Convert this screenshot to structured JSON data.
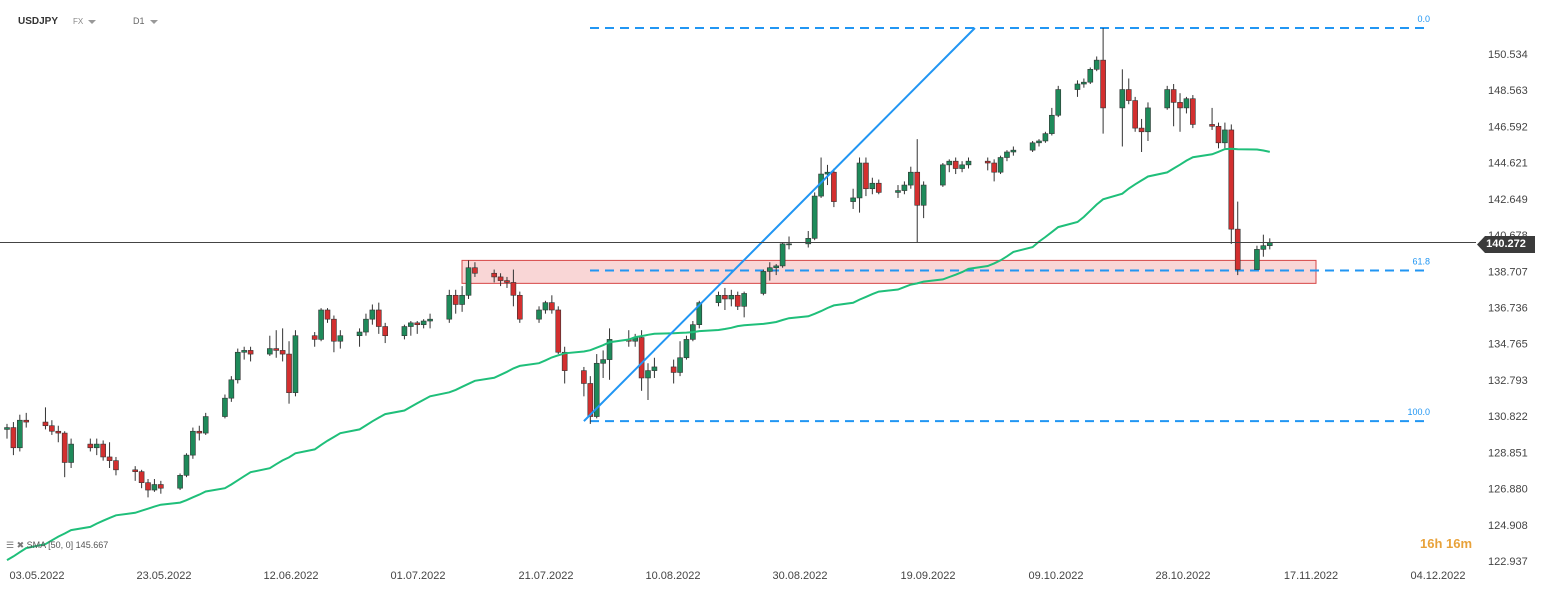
{
  "header": {
    "symbol": "USDJPY",
    "market": "FX",
    "timeframe": "D1"
  },
  "indicator_label": "SMA [50, 0] 145.667",
  "countdown": "16h 16m",
  "current_price_label": "140.272",
  "colors": {
    "up": "#1e8a5a",
    "down": "#d32f2f",
    "sma": "#1fbf7a",
    "fib": "#2196f3",
    "trend": "#2196f3",
    "zone_fill": "#f9d6d6",
    "zone_border": "#d64545",
    "price_line": "#444444"
  },
  "chart_data": {
    "type": "candlestick",
    "symbol": "USDJPY",
    "y_ticks": [
      "150.534",
      "148.563",
      "146.592",
      "144.621",
      "142.649",
      "140.678",
      "138.707",
      "136.736",
      "134.765",
      "132.793",
      "130.822",
      "128.851",
      "126.880",
      "124.908",
      "122.937"
    ],
    "x_ticks": [
      "03.05.2022",
      "23.05.2022",
      "12.06.2022",
      "01.07.2022",
      "21.07.2022",
      "10.08.2022",
      "30.08.2022",
      "19.09.2022",
      "09.10.2022",
      "28.10.2022",
      "17.11.2022",
      "04.12.2022"
    ],
    "ylim": [
      122.937,
      150.534
    ],
    "last_price": 140.272,
    "fibonacci": [
      {
        "label": "0.0",
        "value": 151.95
      },
      {
        "label": "61.8",
        "value": 138.75
      },
      {
        "label": "100.0",
        "value": 130.55
      }
    ],
    "support_zone": {
      "from": 138.05,
      "to": 139.3
    },
    "sma": {
      "name": "SMA",
      "period": 50,
      "shift": 0,
      "value": 145.667
    },
    "trend_line": {
      "from": {
        "x": "2022-08-01",
        "y": 130.55
      },
      "to": {
        "x": "2022-10-01",
        "y": 151.95
      }
    },
    "candles": [
      {
        "d": "2022-05-03",
        "o": 130.1,
        "h": 130.4,
        "l": 129.6,
        "c": 130.2
      },
      {
        "d": "2022-05-04",
        "o": 130.2,
        "h": 130.5,
        "l": 128.7,
        "c": 129.1
      },
      {
        "d": "2022-05-05",
        "o": 129.1,
        "h": 130.9,
        "l": 128.9,
        "c": 130.6
      },
      {
        "d": "2022-05-06",
        "o": 130.6,
        "h": 131.0,
        "l": 130.2,
        "c": 130.5
      },
      {
        "d": "2022-05-09",
        "o": 130.5,
        "h": 131.3,
        "l": 130.1,
        "c": 130.3
      },
      {
        "d": "2022-05-10",
        "o": 130.3,
        "h": 130.6,
        "l": 129.8,
        "c": 130.0
      },
      {
        "d": "2022-05-11",
        "o": 130.0,
        "h": 130.3,
        "l": 129.4,
        "c": 129.9
      },
      {
        "d": "2022-05-12",
        "o": 129.9,
        "h": 130.0,
        "l": 127.5,
        "c": 128.3
      },
      {
        "d": "2022-05-13",
        "o": 128.3,
        "h": 129.6,
        "l": 128.0,
        "c": 129.3
      },
      {
        "d": "2022-05-16",
        "o": 129.3,
        "h": 129.6,
        "l": 128.9,
        "c": 129.1
      },
      {
        "d": "2022-05-17",
        "o": 129.1,
        "h": 129.6,
        "l": 128.7,
        "c": 129.3
      },
      {
        "d": "2022-05-18",
        "o": 129.3,
        "h": 129.5,
        "l": 128.4,
        "c": 128.6
      },
      {
        "d": "2022-05-19",
        "o": 128.6,
        "h": 129.4,
        "l": 128.0,
        "c": 128.4
      },
      {
        "d": "2022-05-20",
        "o": 128.4,
        "h": 128.6,
        "l": 127.6,
        "c": 127.9
      },
      {
        "d": "2022-05-23",
        "o": 127.9,
        "h": 128.1,
        "l": 127.3,
        "c": 127.8
      },
      {
        "d": "2022-05-24",
        "o": 127.8,
        "h": 127.9,
        "l": 126.9,
        "c": 127.2
      },
      {
        "d": "2022-05-25",
        "o": 127.2,
        "h": 127.4,
        "l": 126.4,
        "c": 126.8
      },
      {
        "d": "2022-05-26",
        "o": 126.8,
        "h": 127.4,
        "l": 126.7,
        "c": 127.1
      },
      {
        "d": "2022-05-27",
        "o": 127.1,
        "h": 127.3,
        "l": 126.6,
        "c": 126.9
      },
      {
        "d": "2022-05-30",
        "o": 126.9,
        "h": 127.7,
        "l": 126.8,
        "c": 127.6
      },
      {
        "d": "2022-05-31",
        "o": 127.6,
        "h": 128.8,
        "l": 127.5,
        "c": 128.7
      },
      {
        "d": "2022-06-01",
        "o": 128.7,
        "h": 130.2,
        "l": 128.5,
        "c": 130.0
      },
      {
        "d": "2022-06-02",
        "o": 130.0,
        "h": 130.3,
        "l": 129.5,
        "c": 129.9
      },
      {
        "d": "2022-06-03",
        "o": 129.9,
        "h": 131.0,
        "l": 129.8,
        "c": 130.8
      },
      {
        "d": "2022-06-06",
        "o": 130.8,
        "h": 132.0,
        "l": 130.7,
        "c": 131.8
      },
      {
        "d": "2022-06-07",
        "o": 131.8,
        "h": 133.0,
        "l": 131.6,
        "c": 132.8
      },
      {
        "d": "2022-06-08",
        "o": 132.8,
        "h": 134.5,
        "l": 132.6,
        "c": 134.3
      },
      {
        "d": "2022-06-09",
        "o": 134.3,
        "h": 134.6,
        "l": 133.9,
        "c": 134.4
      },
      {
        "d": "2022-06-10",
        "o": 134.4,
        "h": 134.6,
        "l": 133.8,
        "c": 134.2
      },
      {
        "d": "2022-06-13",
        "o": 134.2,
        "h": 135.2,
        "l": 134.1,
        "c": 134.5
      },
      {
        "d": "2022-06-14",
        "o": 134.5,
        "h": 135.5,
        "l": 134.0,
        "c": 134.4
      },
      {
        "d": "2022-06-15",
        "o": 134.4,
        "h": 135.6,
        "l": 133.8,
        "c": 134.2
      },
      {
        "d": "2022-06-16",
        "o": 134.2,
        "h": 134.9,
        "l": 131.5,
        "c": 132.1
      },
      {
        "d": "2022-06-17",
        "o": 132.1,
        "h": 135.5,
        "l": 131.9,
        "c": 135.2
      },
      {
        "d": "2022-06-20",
        "o": 135.2,
        "h": 135.4,
        "l": 134.6,
        "c": 135.0
      },
      {
        "d": "2022-06-21",
        "o": 135.0,
        "h": 136.7,
        "l": 134.9,
        "c": 136.6
      },
      {
        "d": "2022-06-22",
        "o": 136.6,
        "h": 136.7,
        "l": 135.9,
        "c": 136.1
      },
      {
        "d": "2022-06-23",
        "o": 136.1,
        "h": 136.3,
        "l": 134.3,
        "c": 134.9
      },
      {
        "d": "2022-06-24",
        "o": 134.9,
        "h": 135.5,
        "l": 134.5,
        "c": 135.2
      },
      {
        "d": "2022-06-27",
        "o": 135.2,
        "h": 135.6,
        "l": 134.6,
        "c": 135.4
      },
      {
        "d": "2022-06-28",
        "o": 135.4,
        "h": 136.4,
        "l": 135.2,
        "c": 136.1
      },
      {
        "d": "2022-06-29",
        "o": 136.1,
        "h": 136.9,
        "l": 135.8,
        "c": 136.6
      },
      {
        "d": "2022-06-30",
        "o": 136.6,
        "h": 137.0,
        "l": 135.3,
        "c": 135.7
      },
      {
        "d": "2022-07-01",
        "o": 135.7,
        "h": 135.9,
        "l": 134.8,
        "c": 135.2
      },
      {
        "d": "2022-07-04",
        "o": 135.2,
        "h": 135.8,
        "l": 135.0,
        "c": 135.7
      },
      {
        "d": "2022-07-05",
        "o": 135.7,
        "h": 136.0,
        "l": 135.2,
        "c": 135.9
      },
      {
        "d": "2022-07-06",
        "o": 135.9,
        "h": 136.0,
        "l": 135.3,
        "c": 135.8
      },
      {
        "d": "2022-07-07",
        "o": 135.8,
        "h": 136.1,
        "l": 135.6,
        "c": 136.0
      },
      {
        "d": "2022-07-08",
        "o": 136.0,
        "h": 136.4,
        "l": 135.6,
        "c": 136.1
      },
      {
        "d": "2022-07-11",
        "o": 136.1,
        "h": 137.7,
        "l": 135.9,
        "c": 137.4
      },
      {
        "d": "2022-07-12",
        "o": 137.4,
        "h": 137.7,
        "l": 136.4,
        "c": 136.9
      },
      {
        "d": "2022-07-13",
        "o": 136.9,
        "h": 137.9,
        "l": 136.5,
        "c": 137.4
      },
      {
        "d": "2022-07-14",
        "o": 137.4,
        "h": 139.3,
        "l": 137.2,
        "c": 138.9
      },
      {
        "d": "2022-07-15",
        "o": 138.9,
        "h": 139.2,
        "l": 138.4,
        "c": 138.6
      },
      {
        "d": "2022-07-18",
        "o": 138.6,
        "h": 138.8,
        "l": 138.1,
        "c": 138.4
      },
      {
        "d": "2022-07-19",
        "o": 138.4,
        "h": 138.6,
        "l": 137.9,
        "c": 138.2
      },
      {
        "d": "2022-07-20",
        "o": 138.2,
        "h": 138.4,
        "l": 137.8,
        "c": 138.1
      },
      {
        "d": "2022-07-21",
        "o": 138.1,
        "h": 138.8,
        "l": 136.8,
        "c": 137.4
      },
      {
        "d": "2022-07-22",
        "o": 137.4,
        "h": 137.6,
        "l": 135.9,
        "c": 136.1
      },
      {
        "d": "2022-07-25",
        "o": 136.1,
        "h": 136.8,
        "l": 135.9,
        "c": 136.6
      },
      {
        "d": "2022-07-26",
        "o": 136.6,
        "h": 137.1,
        "l": 136.4,
        "c": 137.0
      },
      {
        "d": "2022-07-27",
        "o": 137.0,
        "h": 137.4,
        "l": 136.4,
        "c": 136.6
      },
      {
        "d": "2022-07-28",
        "o": 136.6,
        "h": 136.8,
        "l": 134.2,
        "c": 134.3
      },
      {
        "d": "2022-07-29",
        "o": 134.3,
        "h": 134.6,
        "l": 132.6,
        "c": 133.3
      },
      {
        "d": "2022-08-01",
        "o": 133.3,
        "h": 133.5,
        "l": 131.9,
        "c": 132.6
      },
      {
        "d": "2022-08-02",
        "o": 132.6,
        "h": 133.0,
        "l": 130.4,
        "c": 130.8
      },
      {
        "d": "2022-08-03",
        "o": 130.8,
        "h": 134.2,
        "l": 130.7,
        "c": 133.7
      },
      {
        "d": "2022-08-04",
        "o": 133.7,
        "h": 134.4,
        "l": 132.9,
        "c": 133.9
      },
      {
        "d": "2022-08-05",
        "o": 133.9,
        "h": 135.6,
        "l": 132.8,
        "c": 135.0
      },
      {
        "d": "2022-08-08",
        "o": 135.0,
        "h": 135.5,
        "l": 134.6,
        "c": 134.9
      },
      {
        "d": "2022-08-09",
        "o": 134.9,
        "h": 135.3,
        "l": 134.6,
        "c": 135.1
      },
      {
        "d": "2022-08-10",
        "o": 135.1,
        "h": 135.5,
        "l": 132.2,
        "c": 132.9
      },
      {
        "d": "2022-08-11",
        "o": 132.9,
        "h": 133.7,
        "l": 131.7,
        "c": 133.3
      },
      {
        "d": "2022-08-12",
        "o": 133.3,
        "h": 134.0,
        "l": 132.9,
        "c": 133.5
      },
      {
        "d": "2022-08-15",
        "o": 133.5,
        "h": 133.9,
        "l": 132.6,
        "c": 133.2
      },
      {
        "d": "2022-08-16",
        "o": 133.2,
        "h": 134.9,
        "l": 133.0,
        "c": 134.0
      },
      {
        "d": "2022-08-17",
        "o": 134.0,
        "h": 135.2,
        "l": 133.9,
        "c": 135.0
      },
      {
        "d": "2022-08-18",
        "o": 135.0,
        "h": 136.0,
        "l": 134.9,
        "c": 135.8
      },
      {
        "d": "2022-08-19",
        "o": 135.8,
        "h": 137.1,
        "l": 135.6,
        "c": 137.0
      },
      {
        "d": "2022-08-22",
        "o": 137.0,
        "h": 137.6,
        "l": 136.8,
        "c": 137.4
      },
      {
        "d": "2022-08-23",
        "o": 137.4,
        "h": 137.8,
        "l": 136.6,
        "c": 137.2
      },
      {
        "d": "2022-08-24",
        "o": 137.2,
        "h": 137.7,
        "l": 136.8,
        "c": 137.4
      },
      {
        "d": "2022-08-25",
        "o": 137.4,
        "h": 137.6,
        "l": 136.6,
        "c": 136.8
      },
      {
        "d": "2022-08-26",
        "o": 136.8,
        "h": 137.6,
        "l": 136.2,
        "c": 137.5
      },
      {
        "d": "2022-08-29",
        "o": 137.5,
        "h": 138.8,
        "l": 137.4,
        "c": 138.7
      },
      {
        "d": "2022-08-30",
        "o": 138.7,
        "h": 139.2,
        "l": 138.2,
        "c": 138.9
      },
      {
        "d": "2022-08-31",
        "o": 138.9,
        "h": 139.1,
        "l": 138.5,
        "c": 139.0
      },
      {
        "d": "2022-09-01",
        "o": 139.0,
        "h": 140.3,
        "l": 138.9,
        "c": 140.2
      },
      {
        "d": "2022-09-02",
        "o": 140.2,
        "h": 140.6,
        "l": 139.9,
        "c": 140.2
      },
      {
        "d": "2022-09-05",
        "o": 140.2,
        "h": 140.9,
        "l": 140.0,
        "c": 140.5
      },
      {
        "d": "2022-09-06",
        "o": 140.5,
        "h": 143.0,
        "l": 140.4,
        "c": 142.8
      },
      {
        "d": "2022-09-07",
        "o": 142.8,
        "h": 144.9,
        "l": 142.7,
        "c": 144.0
      },
      {
        "d": "2022-09-08",
        "o": 144.0,
        "h": 144.5,
        "l": 143.4,
        "c": 144.1
      },
      {
        "d": "2022-09-09",
        "o": 144.1,
        "h": 144.3,
        "l": 142.2,
        "c": 142.5
      },
      {
        "d": "2022-09-12",
        "o": 142.5,
        "h": 143.2,
        "l": 142.1,
        "c": 142.7
      },
      {
        "d": "2022-09-13",
        "o": 142.7,
        "h": 144.9,
        "l": 141.9,
        "c": 144.6
      },
      {
        "d": "2022-09-14",
        "o": 144.6,
        "h": 144.9,
        "l": 142.8,
        "c": 143.2
      },
      {
        "d": "2022-09-15",
        "o": 143.2,
        "h": 143.8,
        "l": 142.9,
        "c": 143.5
      },
      {
        "d": "2022-09-16",
        "o": 143.5,
        "h": 143.7,
        "l": 142.9,
        "c": 143.0
      },
      {
        "d": "2022-09-19",
        "o": 143.0,
        "h": 143.4,
        "l": 142.7,
        "c": 143.1
      },
      {
        "d": "2022-09-20",
        "o": 143.1,
        "h": 143.6,
        "l": 142.9,
        "c": 143.4
      },
      {
        "d": "2022-09-21",
        "o": 143.4,
        "h": 144.4,
        "l": 143.2,
        "c": 144.1
      },
      {
        "d": "2022-09-22",
        "o": 144.1,
        "h": 145.9,
        "l": 140.3,
        "c": 142.3
      },
      {
        "d": "2022-09-23",
        "o": 142.3,
        "h": 143.6,
        "l": 141.6,
        "c": 143.4
      },
      {
        "d": "2022-09-26",
        "o": 143.4,
        "h": 144.6,
        "l": 143.3,
        "c": 144.5
      },
      {
        "d": "2022-09-27",
        "o": 144.5,
        "h": 144.8,
        "l": 144.1,
        "c": 144.7
      },
      {
        "d": "2022-09-28",
        "o": 144.7,
        "h": 144.9,
        "l": 144.0,
        "c": 144.3
      },
      {
        "d": "2022-09-29",
        "o": 144.3,
        "h": 144.7,
        "l": 144.1,
        "c": 144.5
      },
      {
        "d": "2022-09-30",
        "o": 144.5,
        "h": 144.9,
        "l": 144.3,
        "c": 144.7
      },
      {
        "d": "2022-10-03",
        "o": 144.7,
        "h": 144.9,
        "l": 144.2,
        "c": 144.6
      },
      {
        "d": "2022-10-04",
        "o": 144.6,
        "h": 144.8,
        "l": 143.6,
        "c": 144.1
      },
      {
        "d": "2022-10-05",
        "o": 144.1,
        "h": 145.0,
        "l": 144.0,
        "c": 144.9
      },
      {
        "d": "2022-10-06",
        "o": 144.9,
        "h": 145.3,
        "l": 144.7,
        "c": 145.2
      },
      {
        "d": "2022-10-07",
        "o": 145.2,
        "h": 145.5,
        "l": 145.0,
        "c": 145.3
      },
      {
        "d": "2022-10-10",
        "o": 145.3,
        "h": 145.8,
        "l": 145.2,
        "c": 145.7
      },
      {
        "d": "2022-10-11",
        "o": 145.7,
        "h": 145.9,
        "l": 145.5,
        "c": 145.8
      },
      {
        "d": "2022-10-12",
        "o": 145.8,
        "h": 146.3,
        "l": 145.7,
        "c": 146.2
      },
      {
        "d": "2022-10-13",
        "o": 146.2,
        "h": 147.6,
        "l": 146.1,
        "c": 147.2
      },
      {
        "d": "2022-10-14",
        "o": 147.2,
        "h": 148.8,
        "l": 147.1,
        "c": 148.6
      },
      {
        "d": "2022-10-17",
        "o": 148.6,
        "h": 149.1,
        "l": 148.2,
        "c": 148.9
      },
      {
        "d": "2022-10-18",
        "o": 148.9,
        "h": 149.2,
        "l": 148.7,
        "c": 149.0
      },
      {
        "d": "2022-10-19",
        "o": 149.0,
        "h": 149.8,
        "l": 148.9,
        "c": 149.7
      },
      {
        "d": "2022-10-20",
        "o": 149.7,
        "h": 150.4,
        "l": 149.6,
        "c": 150.2
      },
      {
        "d": "2022-10-21",
        "o": 150.2,
        "h": 151.95,
        "l": 146.2,
        "c": 147.6
      },
      {
        "d": "2022-10-24",
        "o": 147.6,
        "h": 149.7,
        "l": 145.5,
        "c": 148.6
      },
      {
        "d": "2022-10-25",
        "o": 148.6,
        "h": 149.2,
        "l": 147.8,
        "c": 148.0
      },
      {
        "d": "2022-10-26",
        "o": 148.0,
        "h": 148.2,
        "l": 146.3,
        "c": 146.5
      },
      {
        "d": "2022-10-27",
        "o": 146.5,
        "h": 147.0,
        "l": 145.2,
        "c": 146.3
      },
      {
        "d": "2022-10-28",
        "o": 146.3,
        "h": 147.9,
        "l": 145.8,
        "c": 147.6
      },
      {
        "d": "2022-10-31",
        "o": 147.6,
        "h": 148.8,
        "l": 147.5,
        "c": 148.6
      },
      {
        "d": "2022-11-01",
        "o": 148.6,
        "h": 148.9,
        "l": 146.6,
        "c": 147.9
      },
      {
        "d": "2022-11-02",
        "o": 147.9,
        "h": 148.4,
        "l": 146.3,
        "c": 147.6
      },
      {
        "d": "2022-11-03",
        "o": 147.6,
        "h": 148.2,
        "l": 147.3,
        "c": 148.1
      },
      {
        "d": "2022-11-04",
        "o": 148.1,
        "h": 148.3,
        "l": 146.5,
        "c": 146.7
      },
      {
        "d": "2022-11-07",
        "o": 146.7,
        "h": 147.6,
        "l": 146.4,
        "c": 146.6
      },
      {
        "d": "2022-11-08",
        "o": 146.6,
        "h": 146.8,
        "l": 145.4,
        "c": 145.7
      },
      {
        "d": "2022-11-09",
        "o": 145.7,
        "h": 146.8,
        "l": 145.4,
        "c": 146.4
      },
      {
        "d": "2022-11-10",
        "o": 146.4,
        "h": 146.7,
        "l": 140.2,
        "c": 141.0
      },
      {
        "d": "2022-11-11",
        "o": 141.0,
        "h": 142.5,
        "l": 138.5,
        "c": 138.8
      },
      {
        "d": "2022-11-14",
        "o": 138.8,
        "h": 140.1,
        "l": 138.8,
        "c": 139.9
      },
      {
        "d": "2022-11-15",
        "o": 139.9,
        "h": 140.7,
        "l": 139.5,
        "c": 140.1
      },
      {
        "d": "2022-11-16",
        "o": 140.1,
        "h": 140.5,
        "l": 139.9,
        "c": 140.27
      }
    ]
  }
}
